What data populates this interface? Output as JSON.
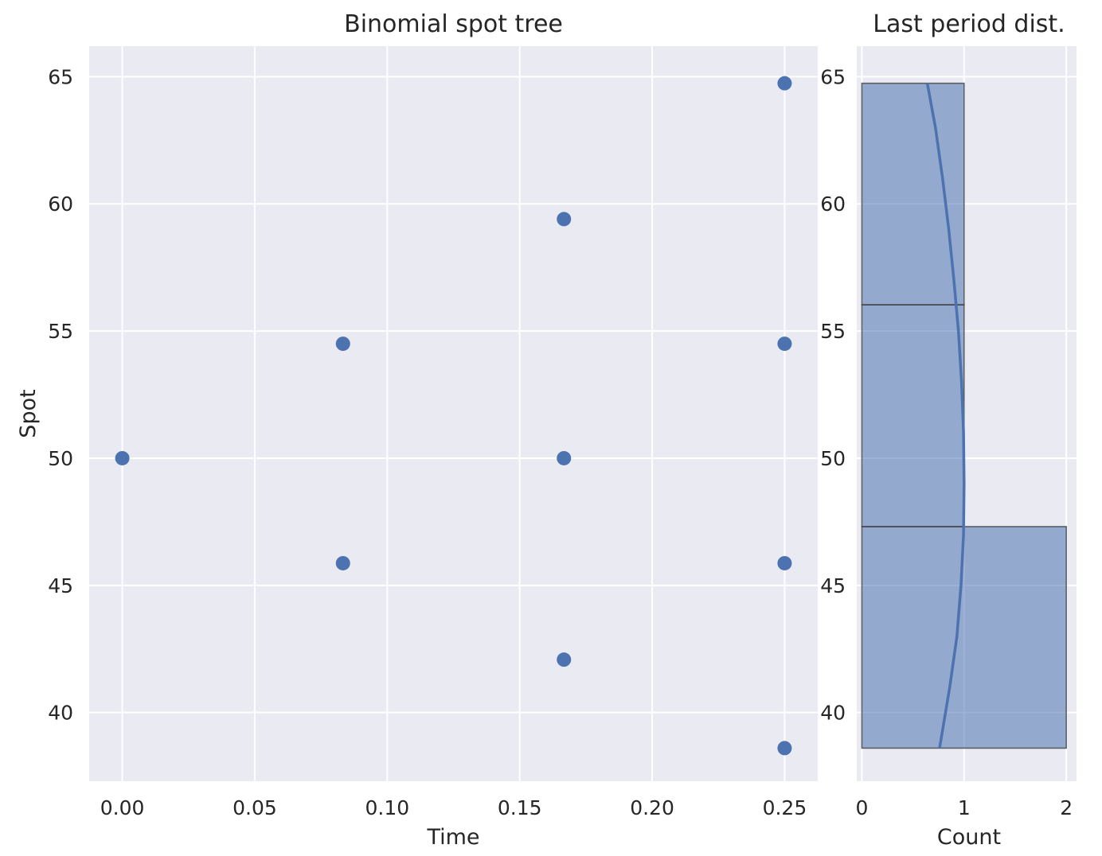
{
  "chart_data": [
    {
      "type": "scatter",
      "title": "Binomial spot tree",
      "xlabel": "Time",
      "ylabel": "Spot",
      "xlim": [
        -0.0125,
        0.2625
      ],
      "ylim": [
        37.3,
        66.2
      ],
      "xticks": [
        "0.00",
        "0.05",
        "0.10",
        "0.15",
        "0.20",
        "0.25"
      ],
      "yticks": [
        "40",
        "45",
        "50",
        "55",
        "60",
        "65"
      ],
      "grid": true,
      "color": "#4c72b0",
      "background": "#eaeaf2",
      "points": [
        {
          "x": 0.0,
          "y": 50.0
        },
        {
          "x": 0.0833,
          "y": 54.5
        },
        {
          "x": 0.0833,
          "y": 45.87
        },
        {
          "x": 0.1667,
          "y": 59.4
        },
        {
          "x": 0.1667,
          "y": 50.0
        },
        {
          "x": 0.1667,
          "y": 42.08
        },
        {
          "x": 0.25,
          "y": 64.74
        },
        {
          "x": 0.25,
          "y": 54.5
        },
        {
          "x": 0.25,
          "y": 45.87
        },
        {
          "x": 0.25,
          "y": 38.6
        }
      ]
    },
    {
      "type": "bar",
      "orientation": "horizontal",
      "title": "Last period dist.",
      "xlabel": "Count",
      "ylabel": "",
      "xlim": [
        -0.05,
        2.1
      ],
      "ylim": [
        37.3,
        66.2
      ],
      "xticks": [
        "0",
        "1",
        "2"
      ],
      "yticks": [
        "40",
        "45",
        "50",
        "55",
        "60",
        "65"
      ],
      "grid": true,
      "color": "#4c72b0",
      "background": "#eaeaf2",
      "bins": [
        {
          "from": 38.6,
          "to": 47.31,
          "count": 2
        },
        {
          "from": 47.31,
          "to": 56.03,
          "count": 1
        },
        {
          "from": 56.03,
          "to": 64.74,
          "count": 1
        }
      ],
      "kde": [
        {
          "y": 38.6,
          "x": 0.76
        },
        {
          "y": 41.0,
          "x": 0.86
        },
        {
          "y": 43.0,
          "x": 0.93
        },
        {
          "y": 45.0,
          "x": 0.97
        },
        {
          "y": 47.0,
          "x": 0.995
        },
        {
          "y": 49.0,
          "x": 1.0
        },
        {
          "y": 51.0,
          "x": 0.995
        },
        {
          "y": 53.0,
          "x": 0.975
        },
        {
          "y": 55.0,
          "x": 0.945
        },
        {
          "y": 57.0,
          "x": 0.9
        },
        {
          "y": 59.0,
          "x": 0.85
        },
        {
          "y": 61.0,
          "x": 0.79
        },
        {
          "y": 63.0,
          "x": 0.72
        },
        {
          "y": 64.74,
          "x": 0.64
        }
      ]
    }
  ]
}
